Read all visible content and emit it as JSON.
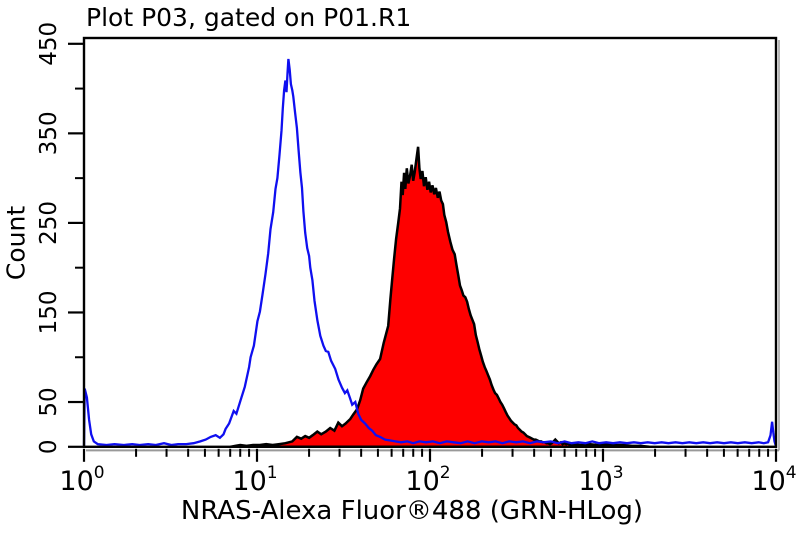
{
  "title": "Plot P03, gated on P01.R1",
  "chart_data": {
    "type": "line",
    "subtype": "flow-cytometry-overlay-histogram",
    "title": "Plot P03, gated on P01.R1",
    "xlabel": "NRAS-Alexa Fluor®488 (GRN-HLog)",
    "ylabel": "Count",
    "x_scale": "log10",
    "xlim": [
      1,
      10000
    ],
    "ylim": [
      0,
      459
    ],
    "grid": false,
    "legend": "none",
    "colors": {
      "blue_line": "#0f0ff0",
      "red_fill": "#fe0000",
      "red_outline": "#000000",
      "axis": "#000000",
      "axis_shadow": "#999999",
      "background": "#ffffff",
      "text": "#000000"
    },
    "y_axis": {
      "labeled_ticks": [
        0,
        50,
        150,
        250,
        350,
        450
      ],
      "minor_ticks": [
        100,
        200,
        300,
        400
      ],
      "tick_labels": [
        "0",
        "50",
        "150",
        "250",
        "350",
        "450"
      ]
    },
    "x_axis": {
      "base_label": "10",
      "decade_exponents": [
        0,
        1,
        2,
        3,
        4
      ],
      "minor_multiples": [
        2,
        3,
        4,
        5,
        6,
        7,
        8,
        9
      ]
    },
    "series": [
      {
        "name": "red-filled-histogram",
        "style": "filled",
        "fill": "#fe0000",
        "stroke": "#000000",
        "stroke_width": 2.5,
        "peak": {
          "x": 85,
          "count": 335
        },
        "points": [
          [
            7,
            0
          ],
          [
            7.5,
            1
          ],
          [
            8,
            2
          ],
          [
            8.7,
            1
          ],
          [
            9.5,
            2
          ],
          [
            10.4,
            2
          ],
          [
            11.3,
            3
          ],
          [
            12.3,
            2
          ],
          [
            13.5,
            3
          ],
          [
            14.6,
            4
          ],
          [
            16,
            6
          ],
          [
            17,
            11
          ],
          [
            18,
            9
          ],
          [
            19,
            12
          ],
          [
            20,
            10
          ],
          [
            21,
            13
          ],
          [
            22.3,
            17
          ],
          [
            23.5,
            14
          ],
          [
            25,
            17
          ],
          [
            26.5,
            21
          ],
          [
            28,
            18
          ],
          [
            29.5,
            27
          ],
          [
            31,
            23
          ],
          [
            32.5,
            26
          ],
          [
            34.6,
            31
          ],
          [
            36,
            36
          ],
          [
            37.9,
            42
          ],
          [
            39.5,
            52
          ],
          [
            41.1,
            65
          ],
          [
            43,
            72
          ],
          [
            45.1,
            79
          ],
          [
            47,
            86
          ],
          [
            49,
            92
          ],
          [
            51.5,
            98
          ],
          [
            54,
            116
          ],
          [
            57.3,
            135
          ],
          [
            59,
            165
          ],
          [
            60.4,
            186
          ],
          [
            62,
            210
          ],
          [
            63.7,
            232
          ],
          [
            65.4,
            249
          ],
          [
            67.1,
            266
          ],
          [
            68.4,
            296
          ],
          [
            69.5,
            281
          ],
          [
            70.8,
            306
          ],
          [
            72,
            288
          ],
          [
            73.4,
            311
          ],
          [
            75,
            294
          ],
          [
            76.7,
            303
          ],
          [
            78.4,
            315
          ],
          [
            80,
            297
          ],
          [
            81.5,
            306
          ],
          [
            83.4,
            321
          ],
          [
            85.3,
            335
          ],
          [
            86.8,
            311
          ],
          [
            88.4,
            299
          ],
          [
            90.4,
            308
          ],
          [
            92.3,
            291
          ],
          [
            94.4,
            301
          ],
          [
            96.6,
            287
          ],
          [
            98.8,
            296
          ],
          [
            101,
            284
          ],
          [
            103.4,
            292
          ],
          [
            105.8,
            282
          ],
          [
            108.2,
            289
          ],
          [
            111,
            278
          ],
          [
            113.5,
            285
          ],
          [
            116,
            275
          ],
          [
            118.8,
            271
          ],
          [
            121,
            259
          ],
          [
            124,
            251
          ],
          [
            127,
            240
          ],
          [
            131,
            229
          ],
          [
            135,
            220
          ],
          [
            139,
            215
          ],
          [
            142,
            204
          ],
          [
            145.6,
            192
          ],
          [
            149,
            180
          ],
          [
            152.5,
            175
          ],
          [
            156,
            169
          ],
          [
            160,
            167
          ],
          [
            163.8,
            162
          ],
          [
            167.6,
            154
          ],
          [
            171.6,
            147
          ],
          [
            175.6,
            142
          ],
          [
            179.8,
            137
          ],
          [
            184,
            125
          ],
          [
            188.4,
            117
          ],
          [
            192.8,
            109
          ],
          [
            197.4,
            102
          ],
          [
            202,
            95
          ],
          [
            207,
            89
          ],
          [
            211.6,
            85
          ],
          [
            216.6,
            80
          ],
          [
            221.8,
            75
          ],
          [
            227,
            69
          ],
          [
            232.4,
            64
          ],
          [
            238,
            60
          ],
          [
            243.6,
            58
          ],
          [
            249.4,
            54
          ],
          [
            255.3,
            50
          ],
          [
            261.4,
            47
          ],
          [
            267.6,
            43
          ],
          [
            274,
            39
          ],
          [
            280.4,
            35
          ],
          [
            287.1,
            32
          ],
          [
            293.9,
            29
          ],
          [
            300.9,
            27
          ],
          [
            308,
            25
          ],
          [
            315.3,
            24
          ],
          [
            322.8,
            21
          ],
          [
            330.4,
            19
          ],
          [
            338.3,
            17
          ],
          [
            346.3,
            16
          ],
          [
            354.6,
            14
          ],
          [
            363,
            12
          ],
          [
            371.6,
            11
          ],
          [
            380.5,
            10
          ],
          [
            389.5,
            9
          ],
          [
            398.8,
            8
          ],
          [
            408.3,
            8
          ],
          [
            418,
            7
          ],
          [
            428,
            6
          ],
          [
            438.5,
            6
          ],
          [
            449,
            5
          ],
          [
            460,
            5
          ],
          [
            471,
            4
          ],
          [
            482,
            4
          ],
          [
            494,
            3
          ],
          [
            506,
            4
          ],
          [
            518,
            6
          ],
          [
            530,
            8
          ],
          [
            543,
            6
          ],
          [
            556,
            4
          ],
          [
            570,
            5
          ],
          [
            584,
            3
          ],
          [
            598,
            4
          ],
          [
            613,
            3
          ],
          [
            628,
            4
          ],
          [
            643,
            2
          ],
          [
            659,
            3
          ],
          [
            740,
            2
          ],
          [
            830,
            3
          ],
          [
            930,
            2
          ],
          [
            1040,
            3
          ],
          [
            1170,
            2
          ],
          [
            1310,
            2
          ],
          [
            1470,
            1
          ],
          [
            1650,
            1
          ],
          [
            1850,
            0
          ]
        ]
      },
      {
        "name": "blue-open-histogram",
        "style": "open",
        "fill": "none",
        "stroke": "#0f0ff0",
        "stroke_width": 2.3,
        "peak": {
          "x": 15.2,
          "count": 433
        },
        "points": [
          [
            1.0,
            0
          ],
          [
            1.01,
            65
          ],
          [
            1.04,
            55
          ],
          [
            1.07,
            30
          ],
          [
            1.1,
            14
          ],
          [
            1.14,
            6
          ],
          [
            1.2,
            3
          ],
          [
            1.35,
            2
          ],
          [
            1.5,
            3
          ],
          [
            1.7,
            2
          ],
          [
            1.9,
            3
          ],
          [
            2.1,
            2
          ],
          [
            2.35,
            3
          ],
          [
            2.6,
            2
          ],
          [
            2.9,
            4
          ],
          [
            3.2,
            2
          ],
          [
            3.5,
            3
          ],
          [
            3.9,
            3
          ],
          [
            4.3,
            4
          ],
          [
            4.7,
            6
          ],
          [
            5.05,
            8
          ],
          [
            5.4,
            11
          ],
          [
            5.77,
            13
          ],
          [
            6.1,
            10
          ],
          [
            6.4,
            14
          ],
          [
            6.58,
            20
          ],
          [
            6.9,
            26
          ],
          [
            7.33,
            40
          ],
          [
            7.6,
            37
          ],
          [
            8.04,
            52
          ],
          [
            8.5,
            67
          ],
          [
            9.0,
            89
          ],
          [
            9.18,
            100
          ],
          [
            9.6,
            113
          ],
          [
            10.06,
            140
          ],
          [
            10.4,
            151
          ],
          [
            10.76,
            170
          ],
          [
            11.2,
            193
          ],
          [
            11.6,
            216
          ],
          [
            11.97,
            243
          ],
          [
            12.4,
            262
          ],
          [
            12.8,
            288
          ],
          [
            13.12,
            300
          ],
          [
            13.5,
            326
          ],
          [
            13.85,
            353
          ],
          [
            14.1,
            378
          ],
          [
            14.35,
            398
          ],
          [
            14.6,
            409
          ],
          [
            14.8,
            396
          ],
          [
            15.0,
            417
          ],
          [
            15.18,
            433
          ],
          [
            15.45,
            421
          ],
          [
            15.7,
            405
          ],
          [
            16.0,
            398
          ],
          [
            16.22,
            391
          ],
          [
            16.6,
            373
          ],
          [
            17.0,
            356
          ],
          [
            17.4,
            331
          ],
          [
            17.82,
            306
          ],
          [
            18.2,
            289
          ],
          [
            18.54,
            263
          ],
          [
            19.0,
            239
          ],
          [
            19.5,
            222
          ],
          [
            20.0,
            213
          ],
          [
            20.33,
            200
          ],
          [
            20.9,
            186
          ],
          [
            21.5,
            163
          ],
          [
            22.33,
            141
          ],
          [
            23.23,
            124
          ],
          [
            24.2,
            113
          ],
          [
            25.0,
            107
          ],
          [
            25.83,
            106
          ],
          [
            26.8,
            96
          ],
          [
            28.31,
            87
          ],
          [
            29.6,
            75
          ],
          [
            31.0,
            66
          ],
          [
            32.2,
            60
          ],
          [
            33.27,
            63
          ],
          [
            34.4,
            55
          ],
          [
            35.5,
            47
          ],
          [
            36.98,
            50
          ],
          [
            38.46,
            37
          ],
          [
            40.0,
            30
          ],
          [
            42.17,
            26
          ],
          [
            44.3,
            21
          ],
          [
            46.35,
            18
          ],
          [
            48.7,
            13
          ],
          [
            51.5,
            11
          ],
          [
            55,
            8
          ],
          [
            59,
            7
          ],
          [
            63,
            6
          ],
          [
            68,
            5
          ],
          [
            74,
            6
          ],
          [
            80,
            4
          ],
          [
            87,
            6
          ],
          [
            95,
            5
          ],
          [
            104,
            6
          ],
          [
            114,
            4
          ],
          [
            125,
            6
          ],
          [
            137,
            5
          ],
          [
            150,
            4
          ],
          [
            165,
            6
          ],
          [
            181,
            4
          ],
          [
            199,
            6
          ],
          [
            218,
            5
          ],
          [
            239,
            6
          ],
          [
            262,
            4
          ],
          [
            287,
            6
          ],
          [
            315,
            5
          ],
          [
            345,
            6
          ],
          [
            378,
            4
          ],
          [
            415,
            6
          ],
          [
            455,
            5
          ],
          [
            499,
            6
          ],
          [
            547,
            4
          ],
          [
            600,
            6
          ],
          [
            658,
            4
          ],
          [
            721,
            5
          ],
          [
            791,
            4
          ],
          [
            867,
            6
          ],
          [
            951,
            4
          ],
          [
            1043,
            5
          ],
          [
            1144,
            4
          ],
          [
            1254,
            5
          ],
          [
            1375,
            4
          ],
          [
            1508,
            5
          ],
          [
            1654,
            4
          ],
          [
            1814,
            5
          ],
          [
            1989,
            4
          ],
          [
            2181,
            5
          ],
          [
            2392,
            4
          ],
          [
            2623,
            5
          ],
          [
            2877,
            4
          ],
          [
            3155,
            5
          ],
          [
            3460,
            4
          ],
          [
            3794,
            5
          ],
          [
            4161,
            4
          ],
          [
            4563,
            5
          ],
          [
            5004,
            4
          ],
          [
            5487,
            5
          ],
          [
            6017,
            4
          ],
          [
            6598,
            5
          ],
          [
            7236,
            4
          ],
          [
            7935,
            5
          ],
          [
            8500,
            4
          ],
          [
            9000,
            5
          ],
          [
            9300,
            13
          ],
          [
            9500,
            28
          ],
          [
            9650,
            16
          ],
          [
            9800,
            6
          ],
          [
            9950,
            2
          ],
          [
            10000,
            0
          ]
        ]
      }
    ]
  }
}
